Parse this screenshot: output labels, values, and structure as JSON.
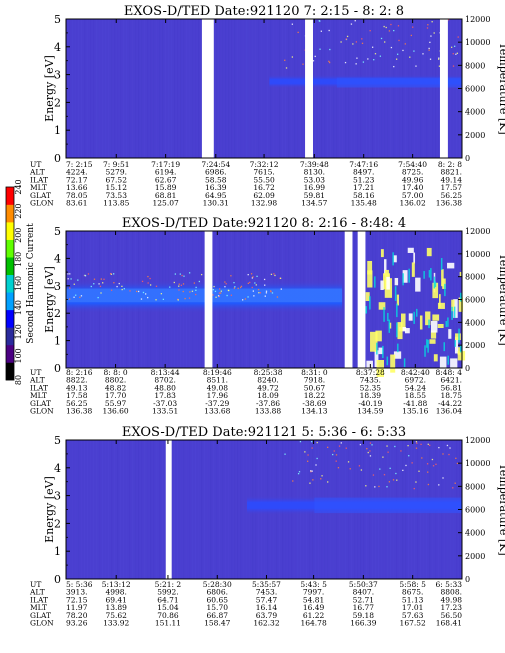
{
  "chart_data": [
    {
      "type": "heatmap",
      "title": "EXOS-D/TED   Date:921120  7: 2:15 - 8: 2: 8",
      "ylabel": "Energy [eV]",
      "y2label": "Temperature [K]",
      "ylim": [
        0,
        5
      ],
      "y2lim": [
        0,
        12000
      ],
      "yticks": [
        0,
        1,
        2,
        3,
        4,
        5
      ],
      "y2ticks": [
        0,
        2000,
        4000,
        6000,
        8000,
        10000,
        12000
      ],
      "row_labels": [
        "UT",
        "ALT",
        "ILAT",
        "MLT",
        "GLAT",
        "GLON"
      ],
      "columns": [
        [
          "7: 2:15",
          "4224.",
          "72.17",
          "13.66",
          "78.05",
          "83.61"
        ],
        [
          "7: 9:51",
          "5279.",
          "67.52",
          "15.12",
          "73.53",
          "113.85"
        ],
        [
          "7:17:19",
          "6194.",
          "62.67",
          "15.89",
          "68.81",
          "125.07"
        ],
        [
          "7:24:54",
          "6986.",
          "58.58",
          "16.39",
          "64.95",
          "130.31"
        ],
        [
          "7:32:12",
          "7615.",
          "55.50",
          "16.72",
          "62.09",
          "132.98"
        ],
        [
          "7:39:48",
          "8130.",
          "53.03",
          "16.99",
          "59.81",
          "134.57"
        ],
        [
          "7:47:16",
          "8497.",
          "51.23",
          "17.21",
          "58.16",
          "135.48"
        ],
        [
          "7:54:40",
          "8725.",
          "49.96",
          "17.40",
          "57.00",
          "136.02"
        ],
        [
          "8: 2: 8",
          "8821.",
          "49.14",
          "17.57",
          "56.25",
          "136.38"
        ]
      ],
      "data_gaps": [
        [
          7.38,
          7.41
        ],
        [
          7.64,
          7.66
        ],
        [
          7.98,
          8.0
        ]
      ],
      "gap_times": [
        "7:22:30",
        "7:38:00",
        "7:57:50"
      ],
      "band_energy_range": [
        2.5,
        3.0
      ]
    },
    {
      "type": "heatmap",
      "title": "EXOS-D/TED   Date:921120  8: 2:16 - 8:48: 4",
      "ylabel": "Energy [eV]",
      "y2label": "Temperature [K]",
      "ylim": [
        0,
        5
      ],
      "y2lim": [
        0,
        12000
      ],
      "yticks": [
        0,
        1,
        2,
        3,
        4,
        5
      ],
      "y2ticks": [
        0,
        2000,
        4000,
        6000,
        8000,
        10000,
        12000
      ],
      "row_labels": [
        "UT",
        "ALT",
        "ILAT",
        "MLT",
        "GLAT",
        "GLON"
      ],
      "columns": [
        [
          "8: 2:16",
          "8822.",
          "49.13",
          "17.58",
          "56.25",
          "136.38"
        ],
        [
          "8: 8: 0",
          "8802.",
          "48.82",
          "17.70",
          "55.97",
          "136.60"
        ],
        [
          "8:13:44",
          "8702.",
          "48.80",
          "17.83",
          "-37.03",
          "133.51"
        ],
        [
          "8:19:46",
          "8511.",
          "49.08",
          "17.96",
          "-37.29",
          "133.68"
        ],
        [
          "8:25:38",
          "8240.",
          "49.72",
          "18.09",
          "-37.86",
          "133.88"
        ],
        [
          "8:31: 0",
          "7918.",
          "50.67",
          "18.22",
          "-38.69",
          "134.13"
        ],
        [
          "8:37:28",
          "7435.",
          "52.35",
          "18.39",
          "-40.19",
          "134.59"
        ],
        [
          "8:42:40",
          "6972.",
          "54.24",
          "18.55",
          "-41.88",
          "135.16"
        ],
        [
          "8:48: 4",
          "6421.",
          "56.81",
          "18.75",
          "-44.22",
          "136.04"
        ]
      ],
      "data_gaps": [
        [
          8.305,
          8.32
        ],
        [
          8.575,
          8.59
        ],
        [
          8.6,
          8.615
        ]
      ],
      "gap_times": [
        "8:18:30",
        "8:34:30",
        "8:36:00"
      ],
      "band_energy_range": [
        2.0,
        3.2
      ],
      "colorbar": {
        "label": "Second Harmonic Current",
        "range": [
          80,
          240
        ],
        "ticks": [
          80,
          100,
          120,
          140,
          160,
          180,
          200,
          220,
          240
        ],
        "colors": [
          "#000000",
          "#4b0082",
          "#2a2a9c",
          "#0000ff",
          "#00a0ff",
          "#00d0d0",
          "#00c000",
          "#60ff00",
          "#ffff00",
          "#ff8c00",
          "#ff0000"
        ]
      }
    },
    {
      "type": "heatmap",
      "title": "EXOS-D/TED   Date:921121  5: 5:36 - 6: 5:33",
      "ylabel": "Energy [eV]",
      "y2label": "Temperature [K]",
      "ylim": [
        0,
        5
      ],
      "y2lim": [
        0,
        12000
      ],
      "yticks": [
        0,
        1,
        2,
        3,
        4,
        5
      ],
      "y2ticks": [
        0,
        2000,
        4000,
        6000,
        8000,
        10000,
        12000
      ],
      "row_labels": [
        "UT",
        "ALT",
        "ILAT",
        "MLT",
        "GLAT",
        "GLON"
      ],
      "columns": [
        [
          "5: 5:36",
          "3913.",
          "72.15",
          "11.97",
          "78.20",
          "93.26"
        ],
        [
          "5:13:12",
          "4998.",
          "69.41",
          "13.89",
          "75.62",
          "133.92"
        ],
        [
          "5:21: 2",
          "5992.",
          "64.71",
          "15.04",
          "70.86",
          "151.11"
        ],
        [
          "5:28:30",
          "6806.",
          "60.65",
          "15.70",
          "66.87",
          "158.47"
        ],
        [
          "5:35:57",
          "7453.",
          "57.47",
          "16.14",
          "63.79",
          "162.32"
        ],
        [
          "5:43: 5",
          "7997.",
          "54.81",
          "16.49",
          "61.22",
          "164.78"
        ],
        [
          "5:50:37",
          "8407.",
          "52.71",
          "16.77",
          "59.18",
          "166.39"
        ],
        [
          "5:58: 5",
          "8675.",
          "51.13",
          "17.01",
          "57.63",
          "167.52"
        ],
        [
          "6: 5:33",
          "8808.",
          "49.98",
          "17.23",
          "56.50",
          "168.41"
        ]
      ],
      "data_gaps": [
        [
          5.345,
          5.36
        ]
      ],
      "gap_times": [
        "5:20:45"
      ],
      "band_energy_range": [
        2.3,
        3.0
      ]
    }
  ]
}
